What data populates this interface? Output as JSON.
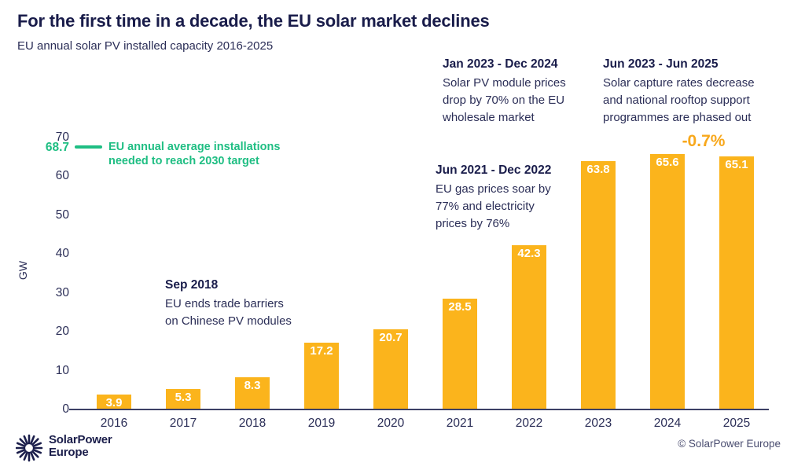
{
  "title": "For the first time in a decade, the EU solar market declines",
  "subtitle": "EU annual solar PV installed capacity 2016-2025",
  "chart_data": {
    "type": "bar",
    "categories": [
      "2016",
      "2017",
      "2018",
      "2019",
      "2020",
      "2021",
      "2022",
      "2023",
      "2024",
      "2025"
    ],
    "values": [
      3.9,
      5.3,
      8.3,
      17.2,
      20.7,
      28.5,
      42.3,
      63.8,
      65.6,
      65.1
    ],
    "title": "EU annual solar PV installed capacity 2016-2025",
    "xlabel": "",
    "ylabel": "GW",
    "ylim": [
      0,
      70
    ],
    "yticks": [
      0,
      10,
      20,
      30,
      40,
      50,
      60,
      70
    ],
    "grid": false,
    "bar_color": "#fbb41c",
    "bar_label_color": "#ffffff",
    "change_annotation": {
      "label": "-0.7%",
      "color": "#f8a81c",
      "between": [
        "2024",
        "2025"
      ]
    },
    "target_line": {
      "value": "68.7",
      "color": "#1fbe83",
      "label_lines": [
        "EU annual average installations",
        "needed to reach 2030 target"
      ]
    }
  },
  "annotations": {
    "sep2018": {
      "title": "Sep 2018",
      "body_lines": [
        "EU ends trade barriers",
        "on Chinese PV modules"
      ]
    },
    "jun2021": {
      "title": "Jun 2021 - Dec 2022",
      "body_lines": [
        "EU gas prices soar by",
        "77% and electricity",
        "prices by 76%"
      ]
    },
    "jan2023": {
      "title": "Jan 2023 - Dec 2024",
      "body_lines": [
        "Solar PV module prices",
        "drop by 70% on the EU",
        "wholesale market"
      ]
    },
    "jun2023": {
      "title": "Jun 2023 - Jun 2025",
      "body_lines": [
        "Solar capture rates decrease",
        "and national rooftop support",
        "programmes are phased out"
      ]
    }
  },
  "footer": {
    "logo_line1": "SolarPower",
    "logo_line2": "Europe",
    "copyright": "© SolarPower Europe"
  },
  "colors": {
    "navy": "#23264f",
    "title_navy": "#191c4a",
    "green": "#1fbe83",
    "bar_yellow": "#fbb41c",
    "background": "#ffffff"
  }
}
